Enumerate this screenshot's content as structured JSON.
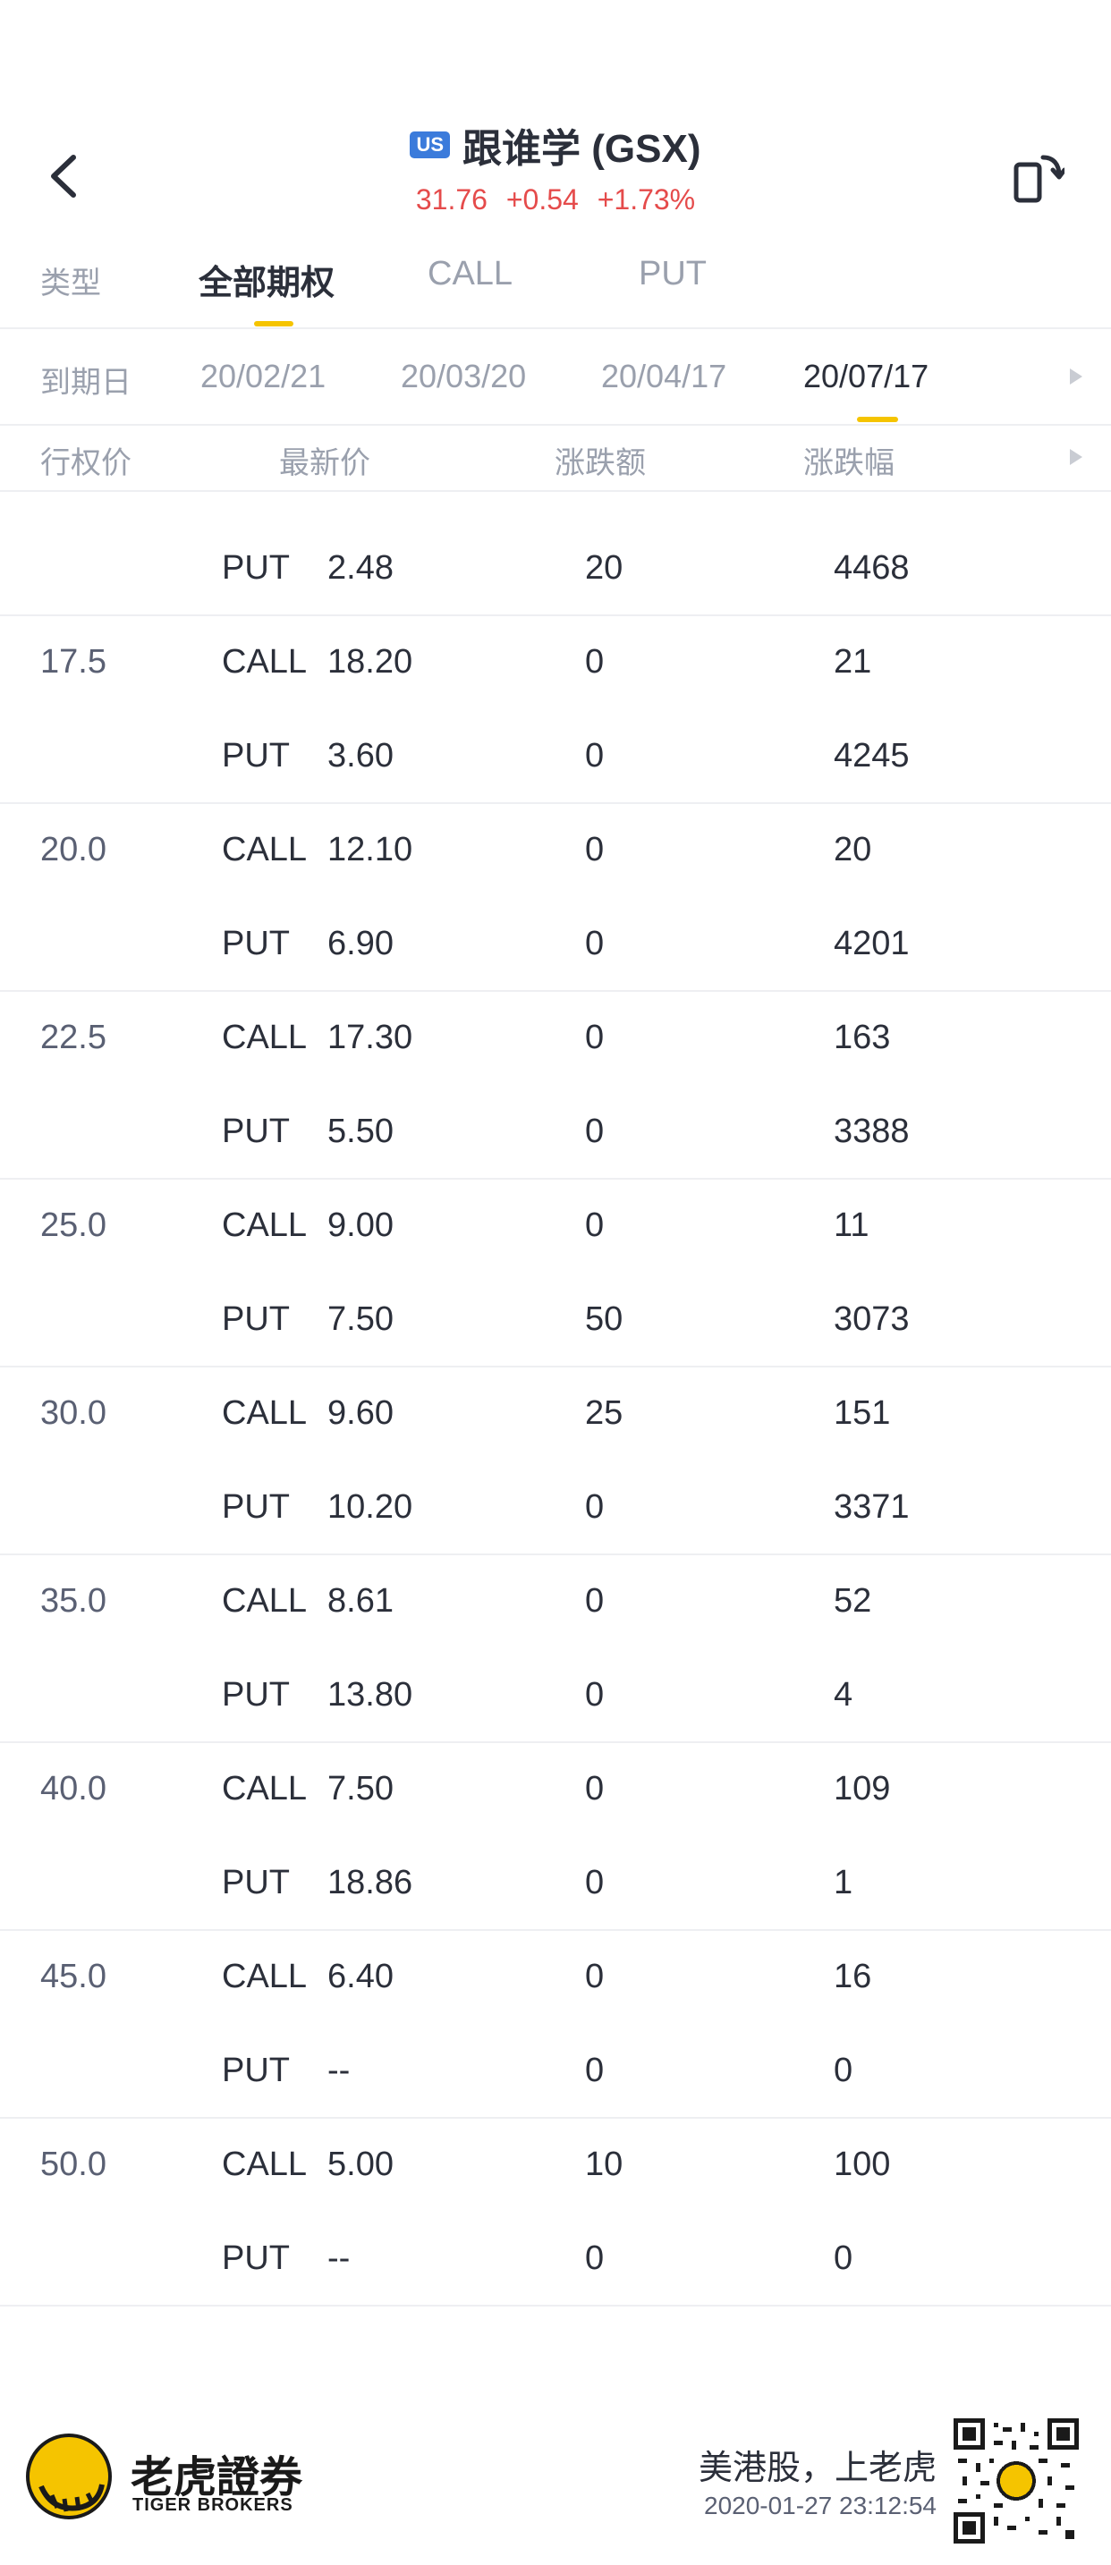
{
  "header": {
    "badge": "US",
    "title": "跟谁学 (GSX)",
    "price": "31.76",
    "change": "+0.54",
    "change_pct": "+1.73%",
    "up_color": "#e54b4b"
  },
  "tabs": {
    "label": "类型",
    "items": [
      "全部期权",
      "CALL",
      "PUT"
    ],
    "active": "全部期权"
  },
  "expiry": {
    "label": "到期日",
    "dates": [
      "20/02/21",
      "20/03/20",
      "20/04/17",
      "20/07/17"
    ],
    "active": "20/07/17"
  },
  "columns": [
    "行权价",
    "最新价",
    "涨跌额",
    "涨跌幅"
  ],
  "rows": [
    {
      "strike": "",
      "type": "PUT",
      "price": "2.48",
      "chg": "20",
      "pct": "4468"
    },
    {
      "strike": "17.5",
      "type": "CALL",
      "price": "18.20",
      "chg": "0",
      "pct": "21"
    },
    {
      "strike": "",
      "type": "PUT",
      "price": "3.60",
      "chg": "0",
      "pct": "4245"
    },
    {
      "strike": "20.0",
      "type": "CALL",
      "price": "12.10",
      "chg": "0",
      "pct": "20"
    },
    {
      "strike": "",
      "type": "PUT",
      "price": "6.90",
      "chg": "0",
      "pct": "4201"
    },
    {
      "strike": "22.5",
      "type": "CALL",
      "price": "17.30",
      "chg": "0",
      "pct": "163"
    },
    {
      "strike": "",
      "type": "PUT",
      "price": "5.50",
      "chg": "0",
      "pct": "3388"
    },
    {
      "strike": "25.0",
      "type": "CALL",
      "price": "9.00",
      "chg": "0",
      "pct": "11"
    },
    {
      "strike": "",
      "type": "PUT",
      "price": "7.50",
      "chg": "50",
      "pct": "3073"
    },
    {
      "strike": "30.0",
      "type": "CALL",
      "price": "9.60",
      "chg": "25",
      "pct": "151"
    },
    {
      "strike": "",
      "type": "PUT",
      "price": "10.20",
      "chg": "0",
      "pct": "3371"
    },
    {
      "strike": "35.0",
      "type": "CALL",
      "price": "8.61",
      "chg": "0",
      "pct": "52"
    },
    {
      "strike": "",
      "type": "PUT",
      "price": "13.80",
      "chg": "0",
      "pct": "4"
    },
    {
      "strike": "40.0",
      "type": "CALL",
      "price": "7.50",
      "chg": "0",
      "pct": "109"
    },
    {
      "strike": "",
      "type": "PUT",
      "price": "18.86",
      "chg": "0",
      "pct": "1"
    },
    {
      "strike": "45.0",
      "type": "CALL",
      "price": "6.40",
      "chg": "0",
      "pct": "16"
    },
    {
      "strike": "",
      "type": "PUT",
      "price": "--",
      "chg": "0",
      "pct": "0"
    },
    {
      "strike": "50.0",
      "type": "CALL",
      "price": "5.00",
      "chg": "10",
      "pct": "100"
    },
    {
      "strike": "",
      "type": "PUT",
      "price": "--",
      "chg": "0",
      "pct": "0"
    }
  ],
  "footer": {
    "brand_cn": "老虎證券",
    "brand_en": "TIGER BROKERS",
    "slogan": "美港股，上老虎",
    "timestamp": "2020-01-27 23:12:54"
  },
  "colors": {
    "accent": "#f5c400",
    "badge": "#3b7bdb"
  }
}
